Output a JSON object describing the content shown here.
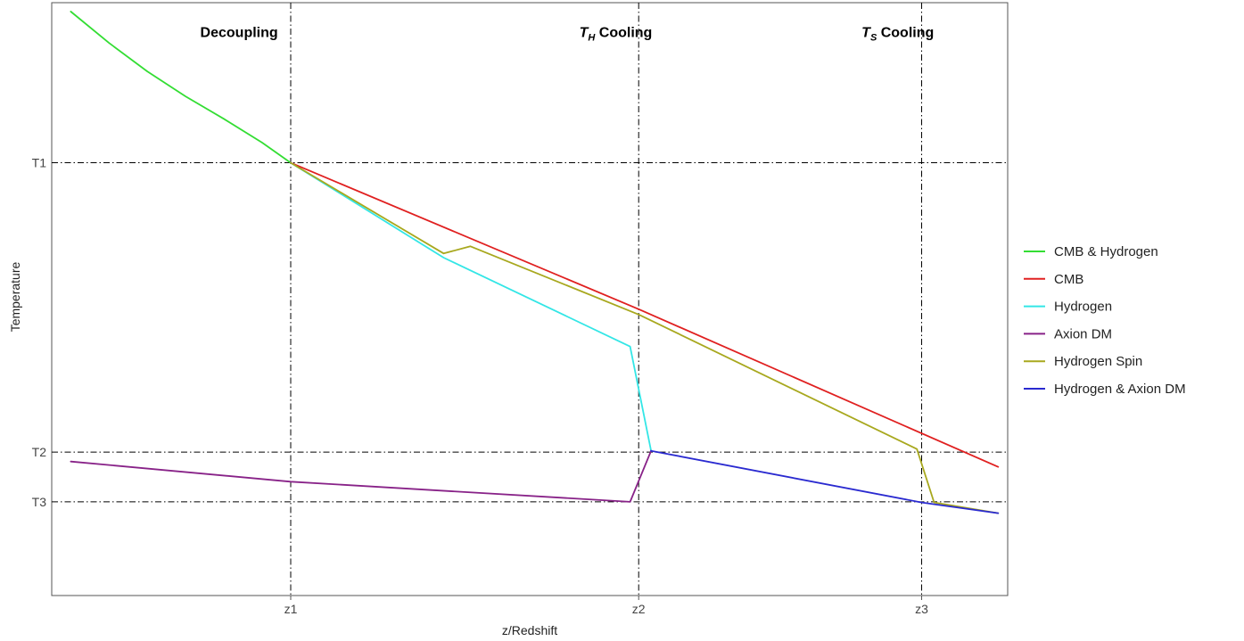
{
  "chart_data": {
    "type": "line",
    "title": "",
    "xlabel": "z/Redshift",
    "ylabel": "Temperature",
    "xlim": [
      0,
      100
    ],
    "ylim": [
      0,
      100
    ],
    "x_ticks": [
      {
        "label": "z1",
        "value": 25
      },
      {
        "label": "z2",
        "value": 61.4
      },
      {
        "label": "z3",
        "value": 91
      }
    ],
    "y_ticks": [
      {
        "label": "T1",
        "value": 73
      },
      {
        "label": "T2",
        "value": 24.2
      },
      {
        "label": "T3",
        "value": 15.8
      }
    ],
    "annotations": [
      {
        "kind": "plain",
        "text": "Decoupling",
        "x": 19.6,
        "y": 94.2
      },
      {
        "kind": "sub",
        "main": "T",
        "sub": "H",
        "rest": " Cooling",
        "x": 59,
        "y": 94.2
      },
      {
        "kind": "sub",
        "main": "T",
        "sub": "S",
        "rest": " Cooling",
        "x": 88.5,
        "y": 94.2
      }
    ],
    "legend_position": "right",
    "grid": false,
    "series": [
      {
        "name": "CMB & Hydrogen",
        "color": "#33dd33",
        "points": [
          [
            2,
            98.5
          ],
          [
            6,
            93.2
          ],
          [
            10,
            88.4
          ],
          [
            14,
            84.2
          ],
          [
            18,
            80.4
          ],
          [
            22,
            76.4
          ],
          [
            25,
            73
          ]
        ]
      },
      {
        "name": "CMB",
        "color": "#e02020",
        "points": [
          [
            25,
            73
          ],
          [
            61.4,
            48.3
          ],
          [
            99,
            21.7
          ]
        ]
      },
      {
        "name": "Hydrogen",
        "color": "#33e6e6",
        "points": [
          [
            25,
            73
          ],
          [
            41,
            57
          ],
          [
            60.5,
            42
          ],
          [
            62.7,
            24.4
          ]
        ]
      },
      {
        "name": "Axion DM",
        "color": "#882288",
        "points": [
          [
            2,
            22.6
          ],
          [
            25,
            19.2
          ],
          [
            60.5,
            15.8
          ],
          [
            62.7,
            24.4
          ]
        ]
      },
      {
        "name": "Hydrogen Spin",
        "color": "#a8a81e",
        "points": [
          [
            25,
            73
          ],
          [
            41,
            57.7
          ],
          [
            43.8,
            58.9
          ],
          [
            61.4,
            47.4
          ],
          [
            90.5,
            24.7
          ],
          [
            92.3,
            15.7
          ],
          [
            99,
            13.9
          ]
        ]
      },
      {
        "name": "Hydrogen & Axion DM",
        "color": "#2a2ad0",
        "points": [
          [
            62.7,
            24.4
          ],
          [
            91,
            15.7
          ],
          [
            99,
            13.9
          ]
        ]
      }
    ]
  }
}
